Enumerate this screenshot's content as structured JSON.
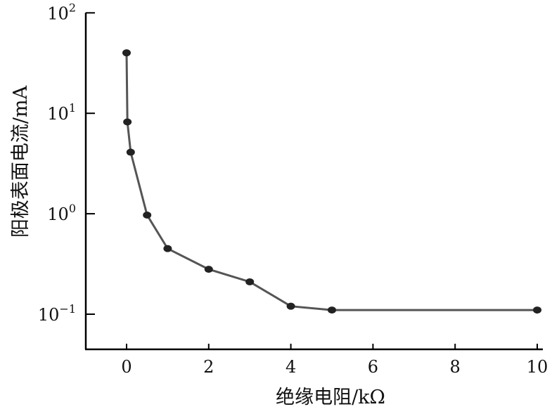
{
  "chart_data": {
    "type": "line",
    "xlabel": "绝缘电阻/kΩ",
    "ylabel": "阳极表面电流/mA",
    "xlim": [
      -1,
      10
    ],
    "ylim": [
      0.1,
      100
    ],
    "yscale": "log",
    "grid": false,
    "xticks": [
      "0",
      "2",
      "4",
      "6",
      "8",
      "10"
    ],
    "yticks": [
      {
        "base": "10",
        "exp": "−1"
      },
      {
        "base": "10",
        "exp": "0"
      },
      {
        "base": "10",
        "exp": "1"
      },
      {
        "base": "10",
        "exp": "2"
      }
    ],
    "x": [
      0,
      0.02,
      0.1,
      0.5,
      1,
      2,
      3,
      4,
      5,
      10
    ],
    "y": [
      40,
      8.2,
      4.1,
      0.97,
      0.45,
      0.28,
      0.21,
      0.12,
      0.11,
      0.11
    ],
    "colors": {
      "line": "#555555",
      "marker": "#222222",
      "axis": "#000000"
    }
  }
}
